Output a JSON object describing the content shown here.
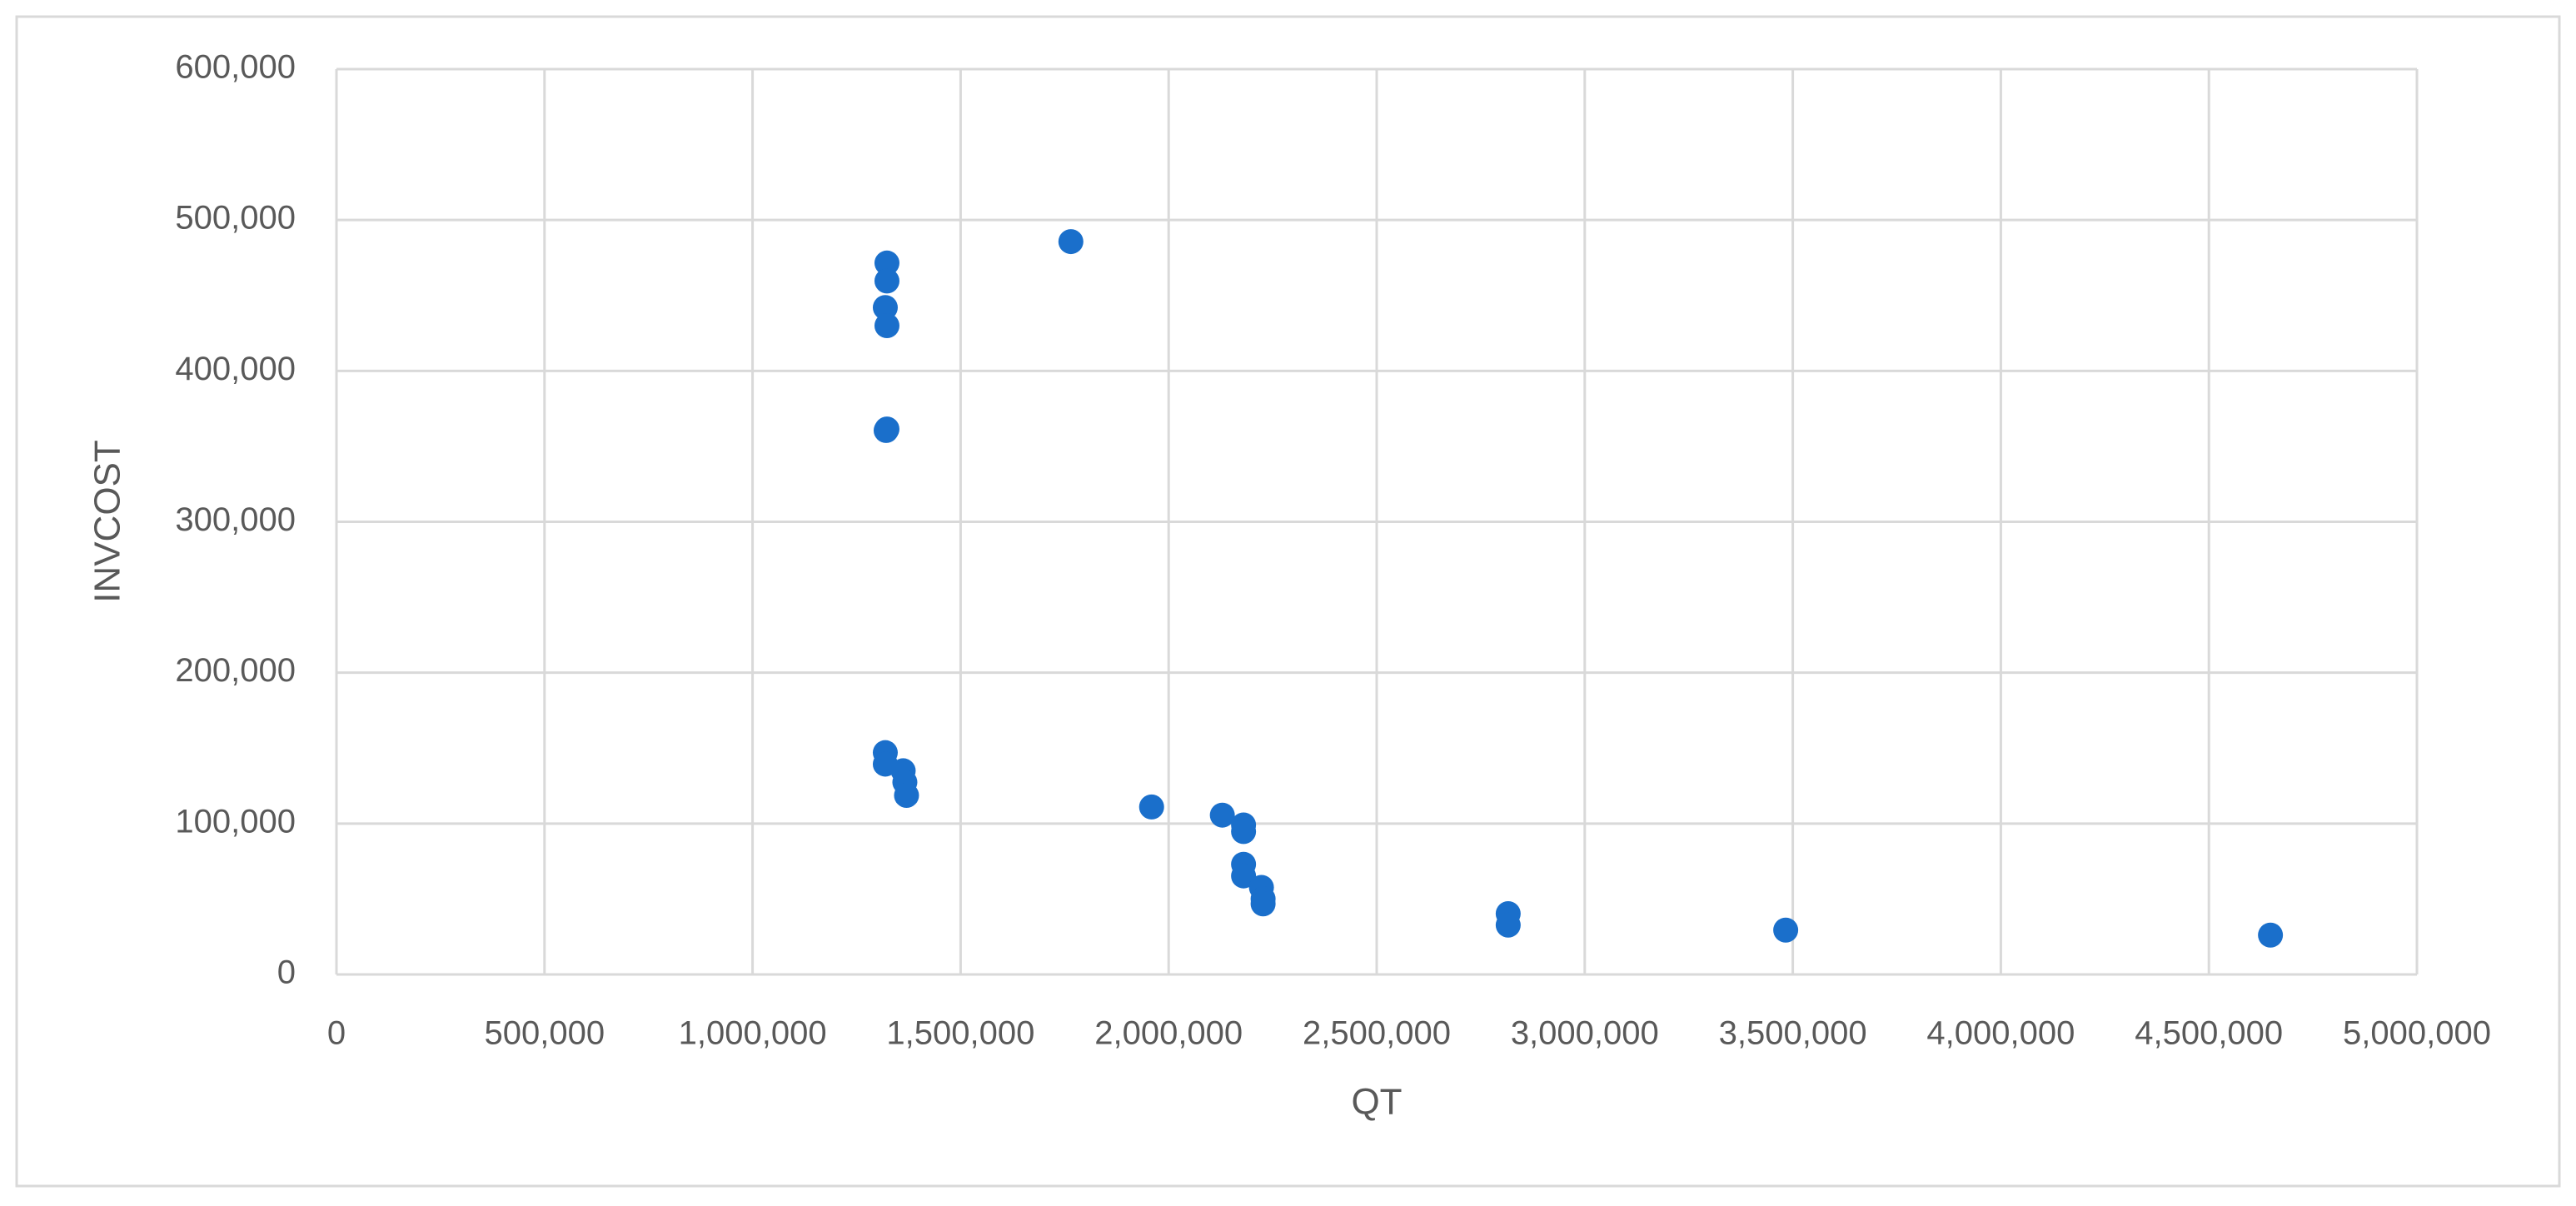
{
  "chart_data": {
    "type": "scatter",
    "x_label": "QT",
    "y_label": "INVCOST",
    "x": [
      1323000,
      1323000,
      1319000,
      1323000,
      1323000,
      1321000,
      1765000,
      1319000,
      1319000,
      1362000,
      1366000,
      1370000,
      1959000,
      2129000,
      2180000,
      2180000,
      2180000,
      2180000,
      2223000,
      2227000,
      2227000,
      2816000,
      2816000,
      3483000,
      4648000
    ],
    "values": [
      471500,
      459600,
      442000,
      430000,
      361500,
      360500,
      485700,
      147000,
      139400,
      135000,
      127400,
      118700,
      111000,
      105600,
      99100,
      94700,
      73000,
      65300,
      57700,
      50100,
      46800,
      40300,
      32700,
      29400,
      26100
    ],
    "color": "#1a6fcb",
    "xlim": [
      0,
      5000000
    ],
    "ylim": [
      0,
      600000
    ],
    "xticks": [
      0,
      {
        "value": 500000,
        "label": "500,000"
      },
      {
        "value": 1000000,
        "label": "1,000,000"
      },
      {
        "value": 1500000,
        "label": "1,500,000"
      },
      {
        "value": 2000000,
        "label": "2,000,000"
      },
      {
        "value": 2500000,
        "label": "2,500,000"
      },
      {
        "value": 3000000,
        "label": "3,000,000"
      },
      {
        "value": 3500000,
        "label": "3,500,000"
      },
      {
        "value": 4000000,
        "label": "4,000,000"
      },
      {
        "value": 4500000,
        "label": "4,500,000"
      },
      {
        "value": 5000000,
        "label": "5,000,000"
      }
    ],
    "yticks": [
      0,
      {
        "value": 100000,
        "label": "100,000"
      },
      {
        "value": 200000,
        "label": "200,000"
      },
      {
        "value": 300000,
        "label": "300,000"
      },
      {
        "value": 400000,
        "label": "400,000"
      },
      {
        "value": 500000,
        "label": "500,000"
      },
      {
        "value": 600000,
        "label": "600,000"
      }
    ],
    "grid": true
  }
}
